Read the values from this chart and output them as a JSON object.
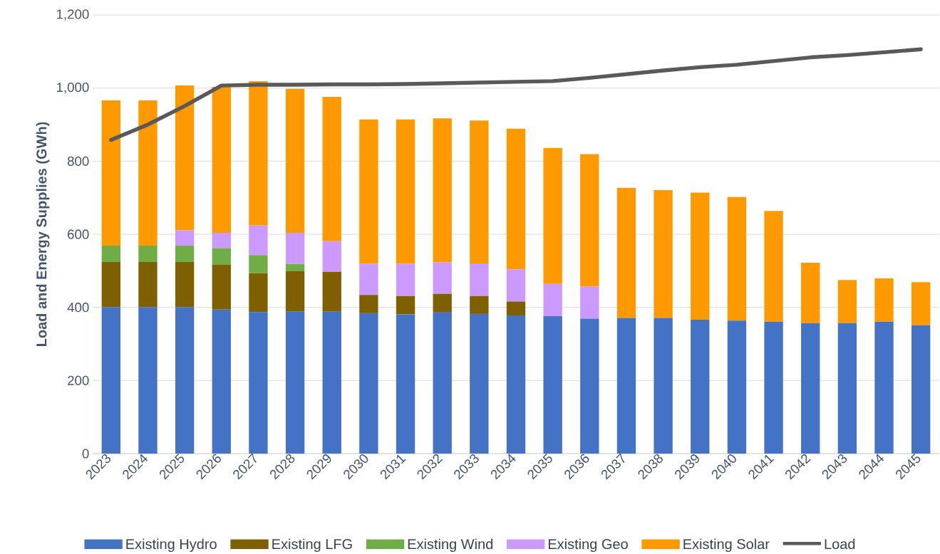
{
  "chart_data": {
    "type": "bar",
    "stacked": true,
    "ylabel": "Load and Energy Supplies (GWh)",
    "categories": [
      "2023",
      "2024",
      "2025",
      "2026",
      "2027",
      "2028",
      "2029",
      "2030",
      "2031",
      "2032",
      "2033",
      "2034",
      "2035",
      "2036",
      "2037",
      "2038",
      "2039",
      "2040",
      "2041",
      "2042",
      "2043",
      "2044",
      "2045"
    ],
    "series": [
      {
        "name": "Existing Hydro",
        "color": "#4472c4",
        "values": [
          401,
          401,
          401,
          394,
          387,
          388,
          388,
          384,
          381,
          386,
          382,
          378,
          376,
          369,
          371,
          371,
          366,
          364,
          361,
          357,
          357,
          361,
          351
        ]
      },
      {
        "name": "Existing LFG",
        "color": "#7f6000",
        "values": [
          123,
          123,
          123,
          123,
          107,
          111,
          109,
          50,
          50,
          51,
          49,
          38,
          0,
          0,
          0,
          0,
          0,
          0,
          0,
          0,
          0,
          0,
          0
        ]
      },
      {
        "name": "Existing Wind",
        "color": "#70ad47",
        "values": [
          45,
          45,
          45,
          45,
          49,
          20,
          0,
          0,
          0,
          0,
          0,
          0,
          0,
          0,
          0,
          0,
          0,
          0,
          0,
          0,
          0,
          0,
          0
        ]
      },
      {
        "name": "Existing Geo",
        "color": "#cc99ff",
        "values": [
          0,
          0,
          42,
          42,
          81,
          85,
          84,
          85,
          88,
          86,
          89,
          88,
          88,
          88,
          0,
          0,
          0,
          0,
          0,
          0,
          0,
          0,
          0
        ]
      },
      {
        "name": "Existing Solar",
        "color": "#ff9900",
        "values": [
          397,
          397,
          396,
          399,
          395,
          394,
          395,
          395,
          395,
          394,
          391,
          385,
          372,
          362,
          356,
          350,
          348,
          338,
          303,
          165,
          118,
          118,
          118
        ]
      },
      {
        "name": "Load",
        "type": "line",
        "color": "#595959",
        "values": [
          858,
          900,
          951,
          1007,
          1009,
          1009,
          1010,
          1010,
          1011,
          1013,
          1015,
          1017,
          1019,
          1028,
          1038,
          1048,
          1057,
          1064,
          1074,
          1084,
          1090,
          1098,
          1106
        ]
      }
    ],
    "ylim": [
      0,
      1200
    ],
    "yticks": [
      0,
      200,
      400,
      600,
      800,
      {
        "value": 1000,
        "label": "1,000"
      },
      {
        "value": 1200,
        "label": "1,200"
      }
    ],
    "grid": "y",
    "legend": "bottom",
    "line_style": "solid",
    "marker": "none"
  }
}
